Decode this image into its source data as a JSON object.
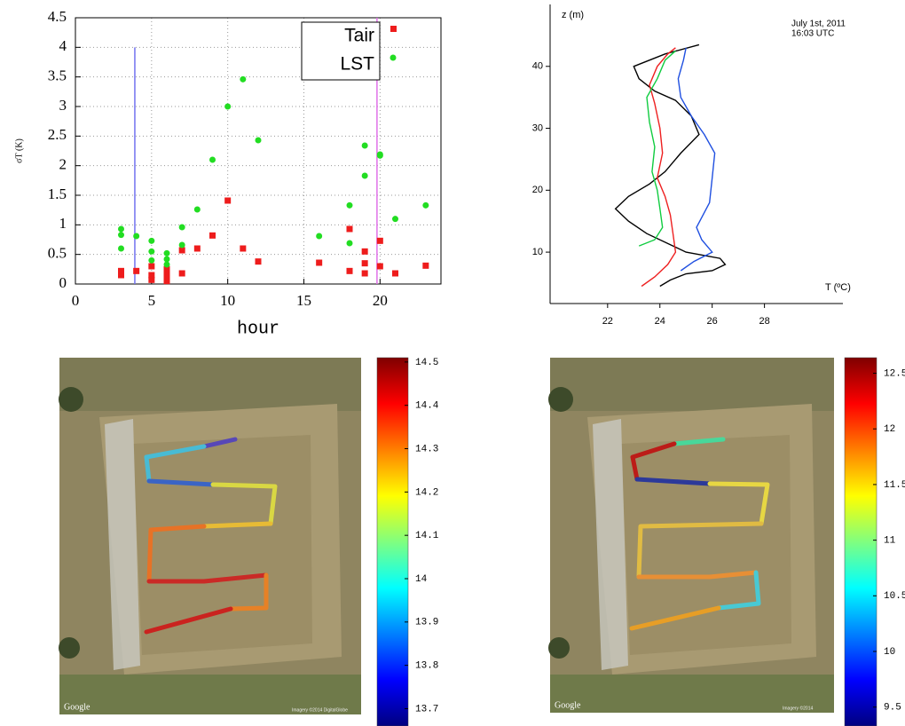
{
  "chart_data": [
    {
      "type": "scatter",
      "xlabel": "hour",
      "ylabel": "σT (K)",
      "xlim": [
        0,
        24
      ],
      "xticks": [
        0,
        5,
        10,
        15,
        20
      ],
      "ylim": [
        0,
        4.5
      ],
      "yticks": [
        0,
        0.5,
        1,
        1.5,
        2,
        2.5,
        3,
        3.5,
        4,
        4.5
      ],
      "grid": true,
      "legend": "upper right",
      "vlines": [
        {
          "x": 3.9,
          "y": [
            0,
            4
          ],
          "color": "#7272f0"
        },
        {
          "x": 19.8,
          "y": [
            0,
            4.5
          ],
          "color": "#e070e8"
        }
      ],
      "series": [
        {
          "name": "Tair",
          "color": "#ee1c1c",
          "marker": "square",
          "x": [
            3,
            3,
            4,
            5,
            5,
            5,
            6,
            6,
            6,
            6,
            6,
            7,
            7,
            8,
            9,
            10,
            11,
            12,
            16,
            18,
            18,
            19,
            19,
            19,
            20,
            20,
            21,
            23
          ],
          "values": [
            0.22,
            0.15,
            0.22,
            0.3,
            0.15,
            0.07,
            0.25,
            0.2,
            0.15,
            0.1,
            0.05,
            0.57,
            0.18,
            0.6,
            0.82,
            1.41,
            0.6,
            0.38,
            0.36,
            0.93,
            0.22,
            0.55,
            0.35,
            0.18,
            0.73,
            0.3,
            0.18,
            0.31
          ]
        },
        {
          "name": "LST",
          "color": "#22dd22",
          "marker": "circle",
          "x": [
            3,
            3,
            3,
            4,
            5,
            5,
            5,
            6,
            6,
            6,
            7,
            7,
            8,
            9,
            10,
            11,
            12,
            16,
            18,
            18,
            19,
            19,
            20,
            20,
            21,
            23
          ],
          "values": [
            0.93,
            0.83,
            0.6,
            0.81,
            0.73,
            0.55,
            0.4,
            0.52,
            0.42,
            0.33,
            0.96,
            0.66,
            1.26,
            2.1,
            3,
            3.46,
            2.43,
            0.81,
            1.33,
            0.69,
            2.34,
            1.83,
            2.19,
            2.17,
            1.1,
            1.33
          ]
        }
      ]
    },
    {
      "type": "profile",
      "ylabel": "z (m)",
      "xlabel": "T (ºC)",
      "annotations": [
        "July 1st, 2011",
        "16:03 UTC"
      ],
      "xlim": [
        19.8,
        31
      ],
      "xticks": [
        22,
        24,
        26,
        28
      ],
      "ylim": [
        1.7,
        50
      ],
      "yticks": [
        10,
        20,
        30,
        40
      ],
      "series": [
        {
          "color": "#000000",
          "x": [
            24.0,
            24.4,
            25.0,
            26.0,
            26.5,
            26.3,
            25.0,
            24.5,
            23.5,
            22.8,
            22.3,
            22.8,
            23.6,
            24.2,
            24.8,
            25.5,
            25.2,
            24.6,
            23.8,
            23.2,
            23.0,
            24.2,
            25.5
          ],
          "y": [
            4.5,
            5.5,
            6.5,
            7,
            8,
            9,
            10,
            11,
            13,
            15,
            17,
            19,
            21,
            23,
            26,
            29,
            32,
            34.5,
            36,
            38,
            40,
            42,
            43.5
          ]
        },
        {
          "color": "#ee2020",
          "x": [
            23.3,
            23.8,
            24.3,
            24.6,
            24.5,
            24.4,
            24.2,
            23.9,
            24.1,
            24.0,
            23.8,
            23.6,
            23.9,
            24.3,
            24.6
          ],
          "y": [
            4.5,
            6,
            8,
            10,
            13,
            16,
            19,
            22,
            26,
            30,
            34,
            37,
            40,
            42,
            43
          ]
        },
        {
          "color": "#10cc40",
          "x": [
            23.2,
            23.8,
            24.1,
            24.0,
            23.9,
            23.7,
            23.8,
            23.6,
            23.5,
            23.9,
            24.2,
            24.6
          ],
          "y": [
            11,
            12,
            14,
            17,
            20,
            23,
            27,
            31,
            35,
            38,
            41,
            42.5
          ]
        },
        {
          "color": "#1f4fe0",
          "x": [
            24.8,
            25.3,
            26.0,
            25.6,
            25.4,
            25.9,
            26.0,
            26.1,
            25.7,
            25.2,
            24.8,
            24.7,
            24.9,
            25.0
          ],
          "y": [
            7,
            8.5,
            10,
            12,
            14,
            18,
            22,
            26,
            29,
            32,
            35,
            38,
            41,
            43
          ]
        }
      ]
    },
    {
      "type": "colorbar",
      "clim": [
        13.66,
        14.51
      ],
      "ticks": [
        14.5,
        14.4,
        14.3,
        14.2,
        14.1,
        14,
        13.9,
        13.8,
        13.7
      ],
      "attribution": "Google",
      "imagery_credit": "Imagery ©2014 DigitalGlobe"
    },
    {
      "type": "colorbar",
      "clim": [
        9.33,
        12.64
      ],
      "ticks": [
        12.5,
        12,
        11.5,
        11,
        10.5,
        10,
        9.5
      ],
      "attribution": "Google",
      "imagery_credit": "Imagery ©2014"
    }
  ]
}
